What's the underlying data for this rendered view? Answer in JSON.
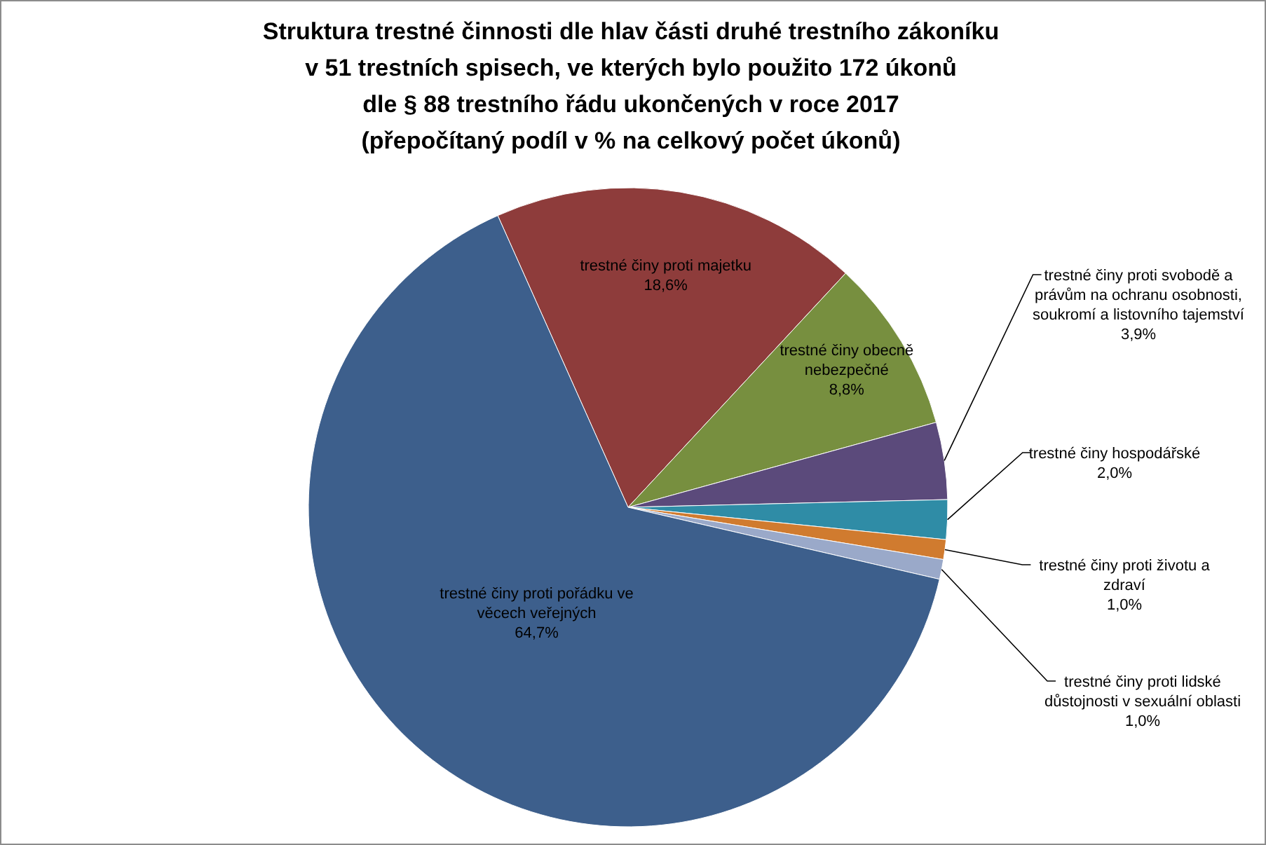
{
  "chart_data": {
    "type": "pie",
    "title": "Struktura trestné činnosti dle hlav části druhé trestního zákoníku\nv 51 trestních spisech, ve kterých bylo použito 172 úkonů\ndle § 88 trestního řádu ukončených v roce 2017\n(přepočítaný podíl v % na celkový počet úkonů)",
    "categories": [
      "trestné činy proti majetku",
      "trestné činy obecně nebezpečné",
      "trestné činy proti svobodě a právům na ochranu osobnosti, soukromí a listovního tajemství",
      "trestné činy hospodářské",
      "trestné činy proti životu a zdraví",
      "trestné činy proti lidské důstojnosti v sexuální oblasti",
      "trestné činy proti pořádku ve věcech veřejných"
    ],
    "values": [
      18.6,
      8.8,
      3.9,
      2.0,
      1.0,
      1.0,
      64.7
    ],
    "colors": [
      "#8e3c3b",
      "#778f3f",
      "#5b4a7b",
      "#2f8ca6",
      "#d07b2f",
      "#9aa9c9",
      "#3d5f8c"
    ],
    "value_labels": [
      "18,6%",
      "8,8%",
      "3,9%",
      "2,0%",
      "1,0%",
      "1,0%",
      "64,7%"
    ]
  }
}
